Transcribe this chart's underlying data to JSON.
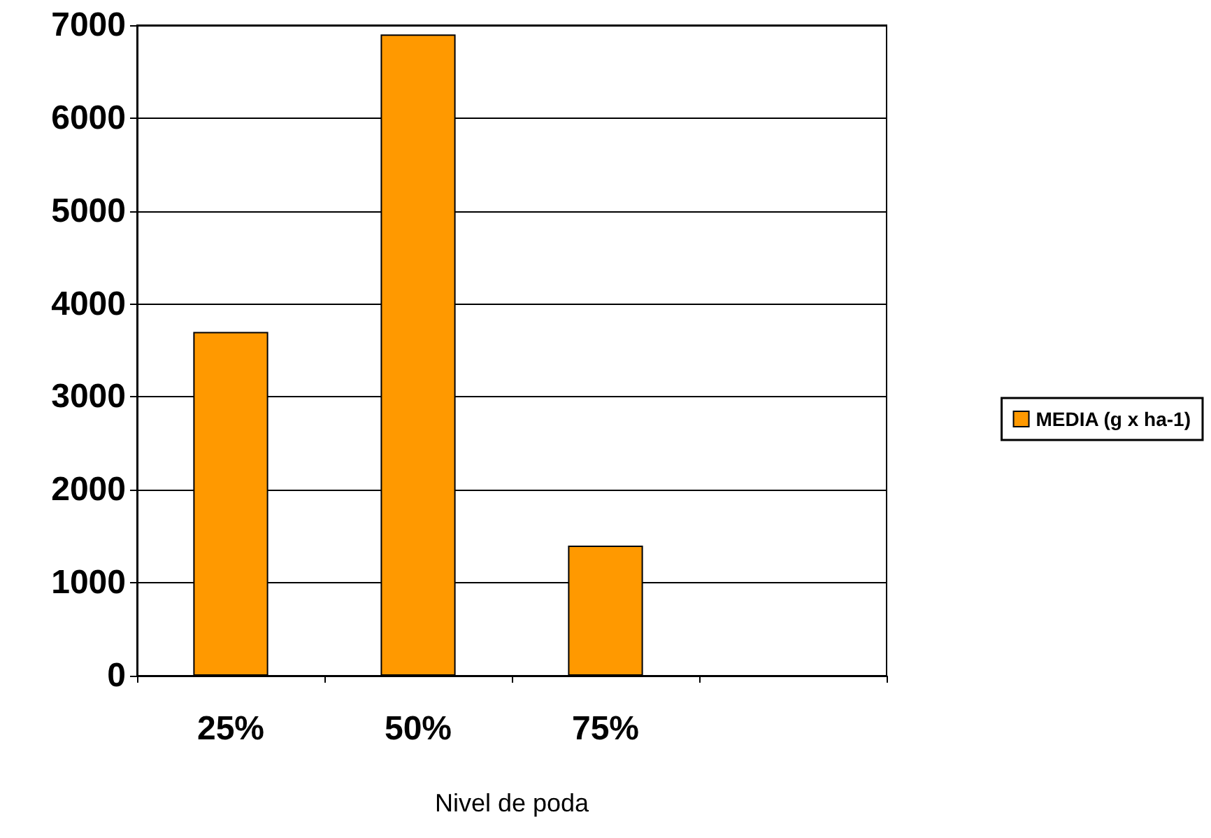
{
  "chart_data": {
    "type": "bar",
    "xlabel": "Nivel de poda",
    "categories": [
      "25%",
      "50%",
      "75%",
      null
    ],
    "series": [
      {
        "name": "MEDIA (g x ha-1)",
        "color": "#ff9900",
        "values": [
          3700,
          6900,
          1400,
          null
        ]
      }
    ],
    "ylim": [
      0,
      7000
    ],
    "yticks": [
      0,
      1000,
      2000,
      3000,
      4000,
      5000,
      6000,
      7000
    ],
    "grid": "y",
    "legend": "right"
  }
}
